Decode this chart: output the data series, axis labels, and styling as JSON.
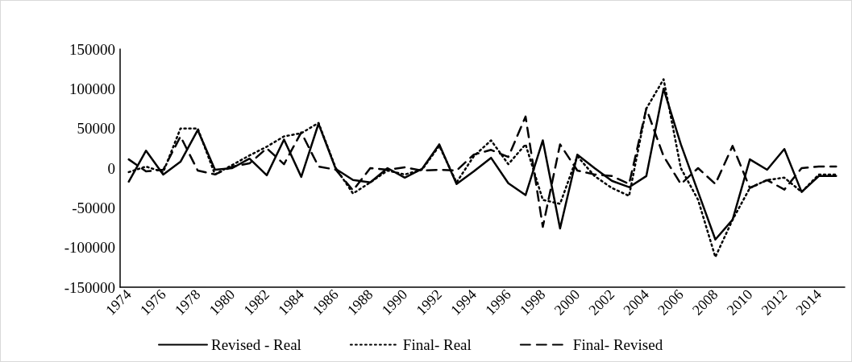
{
  "chart_data": {
    "type": "line",
    "categories": [
      "1974",
      null,
      "1976",
      null,
      "1978",
      null,
      "1980",
      null,
      "1982",
      null,
      "1984",
      null,
      "1986",
      null,
      "1988",
      null,
      "1990",
      null,
      "1992",
      null,
      "1994",
      null,
      "1996",
      null,
      "1998",
      null,
      "2000",
      null,
      "2002",
      null,
      "2004",
      null,
      "2006",
      null,
      "2008",
      null,
      "2010",
      null,
      "2012",
      null,
      "2014",
      null
    ],
    "series": [
      {
        "name": "Revised - Real",
        "color": "#000000",
        "line_style": "solid",
        "values": [
          -17000,
          22000,
          -8000,
          8000,
          48000,
          -2000,
          0,
          12000,
          -9000,
          36000,
          -11000,
          56000,
          -1000,
          -15000,
          -18000,
          0,
          -12000,
          -1000,
          30000,
          -20000,
          -4000,
          13000,
          -19000,
          -34000,
          35000,
          -76000,
          17000,
          0,
          -16000,
          -24000,
          -10000,
          100000,
          30000,
          -30000,
          -90000,
          -65000,
          11000,
          -2000,
          24000,
          -30000,
          -10000,
          -10000
        ]
      },
      {
        "name": "Final- Real",
        "color": "#000000",
        "line_style": "dotted",
        "values": [
          -5000,
          2000,
          -5000,
          50000,
          50000,
          -8000,
          4000,
          16000,
          27000,
          40000,
          44000,
          57000,
          0,
          -32000,
          -18000,
          -3000,
          -8000,
          -2000,
          28000,
          -18000,
          15000,
          35000,
          5000,
          30000,
          -40000,
          -45000,
          15000,
          -10000,
          -25000,
          -35000,
          75000,
          112000,
          0,
          -40000,
          -112000,
          -65000,
          -25000,
          -15000,
          -12000,
          -30000,
          -8000,
          -8000
        ]
      },
      {
        "name": "Final- Revised",
        "color": "#000000",
        "line_style": "dashed",
        "values": [
          11000,
          -4000,
          -2000,
          40000,
          -3000,
          -8000,
          2000,
          6000,
          25000,
          5000,
          45000,
          2000,
          -2000,
          -28000,
          0,
          -2000,
          1000,
          -3000,
          -2000,
          -3000,
          17000,
          23000,
          14000,
          65000,
          -74000,
          30000,
          -3000,
          -8000,
          -10000,
          -20000,
          75000,
          15000,
          -20000,
          0,
          -20000,
          28000,
          -25000,
          -15000,
          -27000,
          0,
          2000,
          2000
        ]
      }
    ],
    "ylim": [
      -150000,
      150000
    ],
    "yticks": [
      -150000,
      -100000,
      -50000,
      0,
      50000,
      100000,
      150000
    ],
    "grid": false,
    "legend": "bottom",
    "marker": "none"
  }
}
